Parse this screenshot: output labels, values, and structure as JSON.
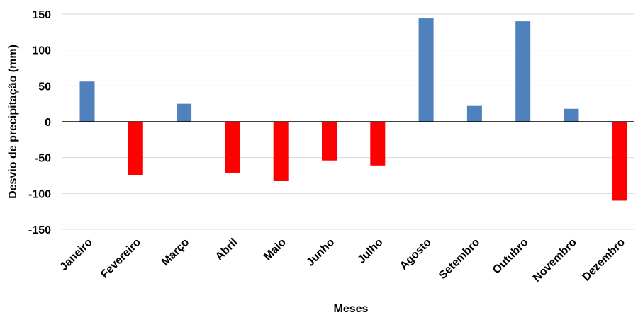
{
  "chart_data": {
    "type": "bar",
    "title": "",
    "xlabel": "Meses",
    "ylabel": "Desvio de precipitação (mm)",
    "ylim": [
      -150,
      150
    ],
    "yticks": [
      -150,
      -100,
      -50,
      0,
      50,
      100,
      150
    ],
    "grid": true,
    "legend": "none",
    "categories": [
      "Janeiro",
      "Fevereiro",
      "Março",
      "Abril",
      "Maio",
      "Junho",
      "Julho",
      "Agosto",
      "Setembro",
      "Outubro",
      "Novembro",
      "Dezembro"
    ],
    "values": [
      56,
      -74,
      25,
      -71,
      -82,
      -54,
      -61,
      144,
      22,
      140,
      18,
      -110
    ],
    "colors": {
      "positive": "#4f81bd",
      "negative": "#ff0000",
      "grid": "#d9d9d9",
      "axis": "#000000"
    }
  }
}
